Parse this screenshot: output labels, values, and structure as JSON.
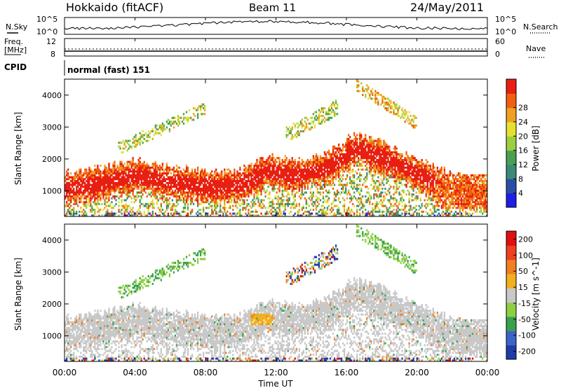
{
  "header": {
    "title": "Hokkaido (fitACF)",
    "beam": "Beam 11",
    "date": "24/May/2011"
  },
  "nsky_panel": {
    "left_label": "N.Sky",
    "right_label": "N.Search",
    "left_ticks": [
      "10^5",
      "10^0"
    ],
    "right_ticks": [
      "10^5",
      "10^0"
    ]
  },
  "freq_panel": {
    "left_label_1": "Freq.",
    "left_label_2": "[MHz]",
    "right_label": "Nave",
    "left_ticks": [
      "12",
      "8"
    ],
    "right_ticks": [
      "60",
      "0"
    ]
  },
  "cpid_panel": {
    "label": "CPID",
    "text": "normal (fast) 151"
  },
  "chart_data": [
    {
      "type": "heatmap",
      "quantity": "Power",
      "ylabel": "Slant Range [km]",
      "xlabel": "Time UT",
      "ylim": [
        200,
        4500
      ],
      "yticks": [
        "1000",
        "2000",
        "3000",
        "4000"
      ],
      "xticks": [
        "00:00",
        "04:00",
        "08:00",
        "12:00",
        "16:00",
        "20:00",
        "00:00"
      ],
      "colorbar": {
        "label": "Power [dB]",
        "ticks": [
          "4",
          "8",
          "12",
          "16",
          "20",
          "24",
          "28"
        ],
        "colors": [
          "#1e1ee6",
          "#2a4ea8",
          "#3a8a7a",
          "#4aa050",
          "#9ad040",
          "#e8e030",
          "#f0a020",
          "#f06010",
          "#e81e10"
        ]
      },
      "main_band_km": [
        {
          "hour": 0,
          "range": 1050
        },
        {
          "hour": 2,
          "range": 1200
        },
        {
          "hour": 4,
          "range": 1450
        },
        {
          "hour": 6,
          "range": 1250
        },
        {
          "hour": 8,
          "range": 1100
        },
        {
          "hour": 10,
          "range": 1150
        },
        {
          "hour": 11.5,
          "range": 1600
        },
        {
          "hour": 13,
          "range": 1450
        },
        {
          "hour": 15,
          "range": 1700
        },
        {
          "hour": 16.5,
          "range": 2300
        },
        {
          "hour": 18,
          "range": 2000
        },
        {
          "hour": 20,
          "range": 1500
        },
        {
          "hour": 22,
          "range": 1000
        },
        {
          "hour": 24,
          "range": 800
        }
      ]
    },
    {
      "type": "heatmap",
      "quantity": "Velocity",
      "ylabel": "Slant Range [km]",
      "xlabel": "Time UT",
      "ylim": [
        200,
        4500
      ],
      "yticks": [
        "1000",
        "2000",
        "3000",
        "4000"
      ],
      "xticks": [
        "00:00",
        "04:00",
        "08:00",
        "12:00",
        "16:00",
        "20:00",
        "00:00"
      ],
      "colorbar": {
        "label": "Velocity [m s^-1]",
        "ticks": [
          "200",
          "100",
          "50",
          "15",
          "-15",
          "-50",
          "-100",
          "-200"
        ],
        "colors": [
          "#1e3ca8",
          "#3c64c8",
          "#3aa050",
          "#8cd040",
          "#c8c8c8",
          "#f0b020",
          "#f08020",
          "#f04020",
          "#e01010"
        ]
      }
    }
  ]
}
